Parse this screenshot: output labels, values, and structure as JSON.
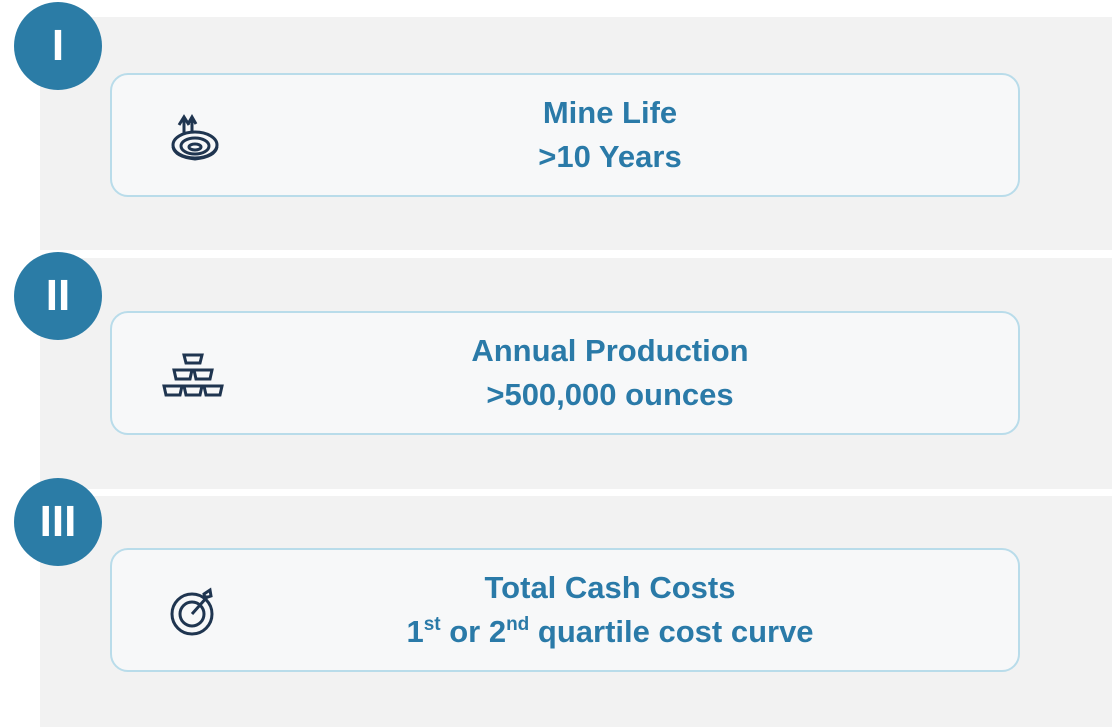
{
  "items": [
    {
      "numeral": "I",
      "title": "Mine Life",
      "subtitle": [
        {
          "text": ">10 Years"
        }
      ]
    },
    {
      "numeral": "II",
      "title": "Annual Production",
      "subtitle": [
        {
          "text": ">500,000 ounces"
        }
      ]
    },
    {
      "numeral": "III",
      "title": "Total Cash Costs",
      "subtitle": [
        {
          "text": "1"
        },
        {
          "text": "st",
          "sup": true
        },
        {
          "text": " or 2"
        },
        {
          "text": "nd",
          "sup": true
        },
        {
          "text": " quartile cost curve"
        }
      ]
    }
  ]
}
